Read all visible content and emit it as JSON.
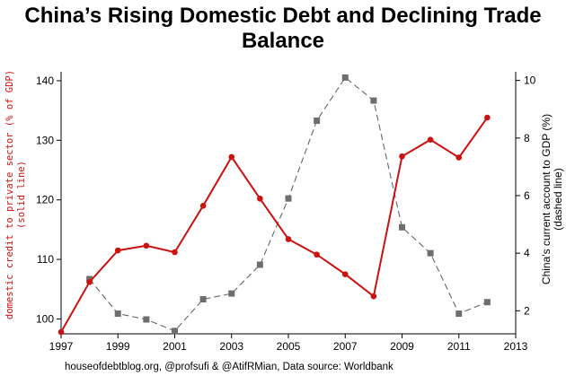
{
  "title": "China’s Rising Domestic Debt and Declining Trade Balance",
  "source_note": "houseofdebtblog.org, @profsufi & @AtifRMian, Data source: Worldbank",
  "chart_data": {
    "type": "line",
    "title": "China’s Rising Domestic Debt and Declining Trade Balance",
    "x_ticks": [
      1997,
      1999,
      2001,
      2003,
      2005,
      2007,
      2009,
      2011,
      2013
    ],
    "xlim": [
      1997,
      2013
    ],
    "grid": false,
    "y_left": {
      "label_line1": "domestic credit to private sector (% of GDP)",
      "label_line2": "(solid line)",
      "ticks": [
        100,
        110,
        120,
        130,
        140
      ],
      "lim": [
        97.5,
        141.5
      ]
    },
    "y_right": {
      "label_line1": "China's current account to GDP (%)",
      "label_line2": "(dashed line)",
      "ticks": [
        2,
        4,
        6,
        8,
        10
      ],
      "lim": [
        1.2,
        10.3
      ]
    },
    "series": [
      {
        "axis": "left",
        "style": "solid",
        "color": "#cc1111",
        "marker": "circle",
        "x": [
          1997,
          1998,
          1999,
          2000,
          2001,
          2002,
          2003,
          2004,
          2005,
          2006,
          2007,
          2008,
          2009,
          2010,
          2011,
          2012
        ],
        "values": [
          97.8,
          106.2,
          111.5,
          112.3,
          111.2,
          119.0,
          127.2,
          120.2,
          113.4,
          110.8,
          107.5,
          103.8,
          127.3,
          130.1,
          127.1,
          133.8
        ]
      },
      {
        "axis": "right",
        "style": "dashed",
        "color": "#666666",
        "marker": "square",
        "x": [
          1998,
          1999,
          2000,
          2001,
          2002,
          2003,
          2004,
          2005,
          2006,
          2007,
          2008,
          2009,
          2010,
          2011,
          2012
        ],
        "values": [
          3.1,
          1.9,
          1.7,
          1.3,
          2.4,
          2.6,
          3.6,
          5.9,
          8.6,
          10.1,
          9.3,
          4.9,
          4.0,
          1.9,
          2.3
        ]
      }
    ]
  }
}
